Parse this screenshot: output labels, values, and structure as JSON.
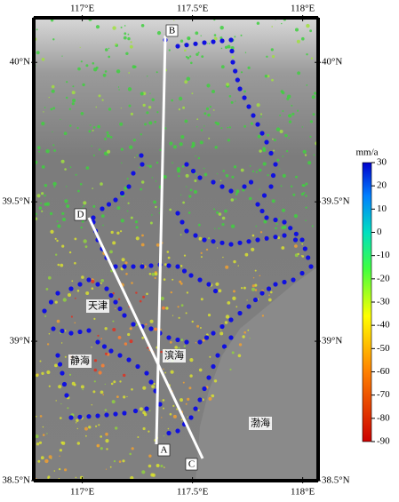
{
  "map": {
    "lon_ticks": [
      {
        "value": 117,
        "label": "117°E"
      },
      {
        "value": 117.5,
        "label": "117.5°E"
      },
      {
        "value": 118,
        "label": "118°E"
      }
    ],
    "lat_ticks": [
      {
        "value": 40,
        "label": "40°N"
      },
      {
        "value": 39.5,
        "label": "39.5°N"
      },
      {
        "value": 39,
        "label": "39°N"
      },
      {
        "value": 38.5,
        "label": "38.5°N"
      }
    ],
    "xlim": [
      116.78,
      118.07
    ],
    "ylim": [
      38.5,
      40.16
    ],
    "places": [
      "天津",
      "静海",
      "滨海",
      "渤海"
    ],
    "profile_labels": [
      "A",
      "B",
      "C",
      "D"
    ]
  },
  "colorbar": {
    "label": "mm/a",
    "ylim": [
      -90,
      30
    ],
    "ticks": [
      30,
      20,
      10,
      0,
      -10,
      -20,
      -30,
      -40,
      -50,
      -60,
      -70,
      -80,
      -90
    ]
  }
}
